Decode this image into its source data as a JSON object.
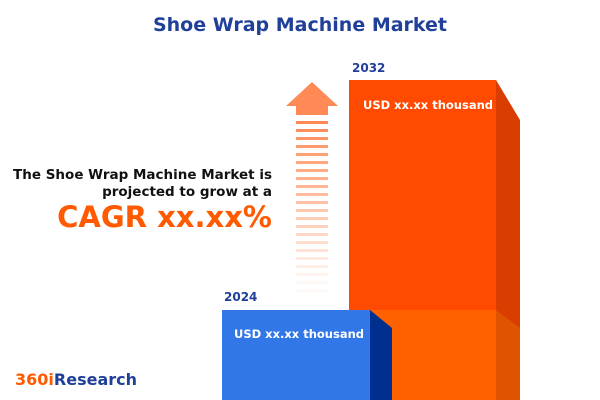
{
  "title": "Shoe Wrap Machine Market",
  "description_line1": "The Shoe Wrap Machine Market is",
  "description_line2": "projected to grow at a",
  "cagr": "CAGR xx.xx%",
  "logo": {
    "part1": "360i",
    "part2": "Research"
  },
  "chart_data": {
    "type": "bar",
    "categories": [
      "2024",
      "2032"
    ],
    "data_labels": [
      "USD xx.xx thousand",
      "USD xx.xx thousand"
    ],
    "colors": {
      "2024": "#3177e8",
      "2032": "#ff4a00"
    }
  }
}
